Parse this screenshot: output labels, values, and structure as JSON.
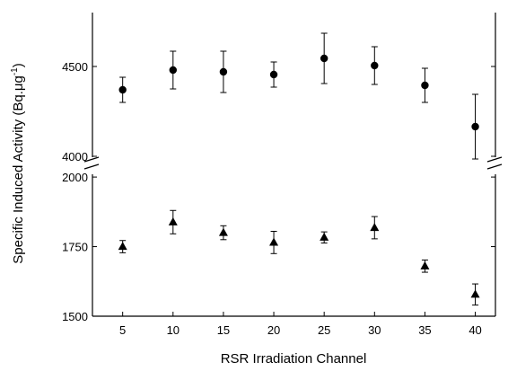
{
  "chart_data": {
    "type": "scatter",
    "xlabel": "RSR Irradiation Channel",
    "ylabel": "Specific Induced Activity (Bq.μg",
    "ylabel_sup": "-1",
    "ylabel_close": ")",
    "x_ticks": [
      5,
      10,
      15,
      20,
      25,
      30,
      35,
      40
    ],
    "xlim": [
      2,
      42
    ],
    "broken_y_axis": true,
    "upper_panel": {
      "ylim": [
        3995,
        4800
      ],
      "ticks": [
        4000,
        4500
      ]
    },
    "lower_panel": {
      "ylim": [
        1500,
        2010
      ],
      "ticks": [
        1500,
        1750,
        2000
      ]
    },
    "grid": false,
    "series": [
      {
        "marker": "circle",
        "panel": "upper",
        "x": [
          5,
          10,
          15,
          20,
          25,
          30,
          35,
          40
        ],
        "y": [
          4370,
          4480,
          4470,
          4455,
          4545,
          4505,
          4395,
          4165
        ],
        "err": [
          70,
          105,
          115,
          70,
          140,
          105,
          95,
          180
        ]
      },
      {
        "marker": "triangle",
        "panel": "lower",
        "x": [
          5,
          10,
          15,
          20,
          25,
          30,
          35,
          40
        ],
        "y": [
          1750,
          1838,
          1800,
          1765,
          1783,
          1818,
          1680,
          1578
        ],
        "err": [
          22,
          42,
          25,
          40,
          20,
          40,
          22,
          38
        ]
      }
    ]
  }
}
